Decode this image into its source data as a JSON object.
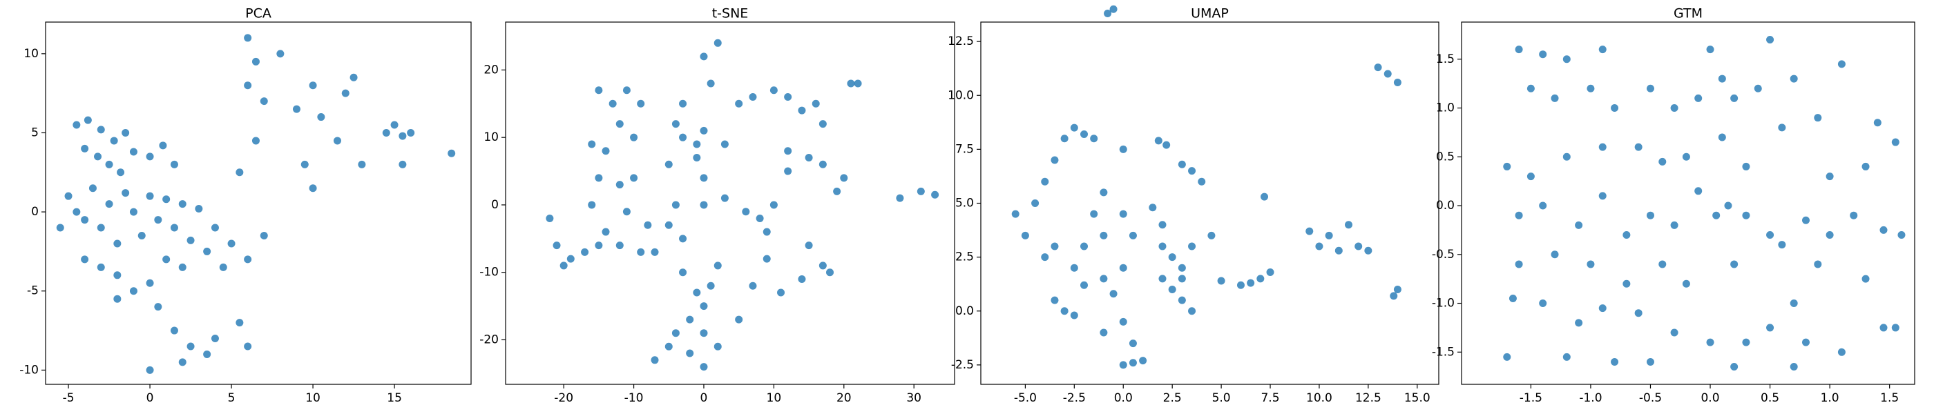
{
  "chart_data": [
    {
      "type": "scatter",
      "title": "PCA",
      "color": "#1f77b4",
      "xlim": [
        -6.4,
        19.7
      ],
      "ylim": [
        -10.9,
        12.0
      ],
      "xticks": [
        -5,
        0,
        5,
        10,
        15
      ],
      "yticks": [
        -10,
        -5,
        0,
        5,
        10
      ],
      "x": [
        -4.5,
        -3.8,
        -3,
        -2.2,
        -1.5,
        -4,
        -3.2,
        -2.5,
        -1.8,
        -1,
        0,
        0.8,
        1.5,
        -5,
        -4.5,
        -5.5,
        -4,
        -3.5,
        -3,
        -2.5,
        -2,
        -1.5,
        -1,
        -0.5,
        0,
        0.5,
        1,
        1.5,
        2,
        2.5,
        3,
        3.5,
        4,
        4.5,
        5,
        6,
        7,
        -4,
        -3,
        -2,
        -1,
        0,
        1,
        2,
        -2,
        0.5,
        1.5,
        2,
        3.5,
        4,
        0,
        2.5,
        5.5,
        6,
        6,
        6.5,
        6,
        8,
        7,
        9,
        10,
        10.5,
        11.5,
        12,
        12.5,
        13,
        14.5,
        15,
        15.5,
        16,
        15.5,
        18.5,
        10,
        9.5,
        6.5,
        5.5
      ],
      "values": [
        5.5,
        5.8,
        5.2,
        4.5,
        5,
        4,
        3.5,
        3,
        2.5,
        3.8,
        3.5,
        4.2,
        3,
        1,
        0,
        -1,
        -0.5,
        1.5,
        -1,
        0.5,
        -2,
        1.2,
        0,
        -1.5,
        1,
        -0.5,
        0.8,
        -1,
        0.5,
        -1.8,
        0.2,
        -2.5,
        -1,
        -3.5,
        -2,
        -3,
        -1.5,
        -3,
        -3.5,
        -4,
        -5,
        -4.5,
        -3,
        -3.5,
        -5.5,
        -6,
        -7.5,
        -9.5,
        -9,
        -8,
        -10,
        -8.5,
        -7,
        -8.5,
        8,
        9.5,
        11,
        10,
        7,
        6.5,
        8,
        6,
        4.5,
        7.5,
        8.5,
        3,
        5,
        5.5,
        4.8,
        5,
        3,
        3.7,
        1.5,
        3,
        4.5,
        2.5
      ]
    },
    {
      "type": "scatter",
      "title": "t-SNE",
      "color": "#1f77b4",
      "xlim": [
        -28.3,
        35.8
      ],
      "ylim": [
        -26.6,
        27.1
      ],
      "xticks": [
        -20,
        -10,
        0,
        10,
        20,
        30
      ],
      "yticks": [
        -20,
        -10,
        0,
        10,
        20
      ],
      "x": [
        -22,
        -21,
        -19,
        -17,
        -15,
        -14,
        -20,
        -15,
        -13,
        -11,
        -9,
        -12,
        -10,
        -16,
        -14,
        -15,
        -12,
        -10,
        -16,
        -11,
        -8,
        -12,
        -9,
        -7,
        -4,
        -5,
        -3,
        -5,
        -3,
        -1,
        0,
        -1,
        -4,
        0,
        0,
        -3,
        0,
        2,
        1,
        5,
        3,
        3,
        6,
        8,
        10,
        9,
        12,
        12,
        7,
        10,
        12,
        14,
        16,
        17,
        15,
        17,
        19,
        20,
        22,
        21,
        -3,
        -1,
        0,
        1,
        2,
        -2,
        0,
        -4,
        -7,
        -5,
        -2,
        0,
        2,
        5,
        7,
        9,
        11,
        14,
        15,
        17,
        18,
        28,
        31,
        33
      ],
      "values": [
        -2,
        -6,
        -8,
        -7,
        -6,
        -4,
        -9,
        17,
        15,
        17,
        15,
        12,
        10,
        9,
        8,
        4,
        3,
        4,
        0,
        -1,
        -3,
        -6,
        -7,
        -7,
        0,
        -3,
        -5,
        6,
        10,
        9,
        11,
        7,
        12,
        4,
        0,
        15,
        22,
        24,
        18,
        15,
        9,
        1,
        -1,
        -2,
        0,
        -4,
        5,
        8,
        16,
        17,
        16,
        14,
        15,
        12,
        7,
        6,
        2,
        4,
        18,
        18,
        -10,
        -13,
        -15,
        -12,
        -9,
        -17,
        -19,
        -19,
        -23,
        -21,
        -22,
        -24,
        -21,
        -17,
        -12,
        -8,
        -13,
        -11,
        -6,
        -9,
        -10,
        1,
        2,
        1.5
      ]
    },
    {
      "type": "scatter",
      "title": "UMAP",
      "color": "#1f77b4",
      "xlim": [
        -7.27,
        16.1
      ],
      "ylim": [
        -3.4,
        13.4
      ],
      "xticks": [
        {
          "value": -5,
          "label": "-5.0"
        },
        -2.5,
        {
          "value": 0,
          "label": "0.0"
        },
        2.5,
        {
          "value": 5,
          "label": "5.0"
        },
        7.5,
        {
          "value": 10,
          "label": "10.0"
        },
        12.5,
        {
          "value": 15,
          "label": "15.0"
        }
      ],
      "yticks": [
        -2.5,
        {
          "value": 0,
          "label": "0.0"
        },
        2.5,
        {
          "value": 5,
          "label": "5.0"
        },
        7.5,
        {
          "value": 10,
          "label": "10.0"
        },
        12.5
      ],
      "x": [
        -5.5,
        -5,
        -4.5,
        -4,
        -3.5,
        -3,
        -2.5,
        -2,
        -1.5,
        -4,
        -3.5,
        -2.5,
        -2,
        -1.5,
        -1,
        -1,
        -3.5,
        -3,
        -2.5,
        -2,
        -1,
        0,
        -0.5,
        0,
        0.5,
        0,
        0.5,
        1,
        -1,
        -0.8,
        -0.5,
        0,
        0,
        0.5,
        1.5,
        2,
        2,
        2.5,
        3,
        2.5,
        3,
        3.5,
        3.5,
        2,
        1.8,
        2.2,
        3,
        3.5,
        4,
        4.5,
        3,
        5,
        6,
        6.5,
        7,
        7.5,
        7.2,
        9.5,
        10,
        10.5,
        11,
        11.5,
        12,
        12.5,
        13,
        13.5,
        14,
        14,
        13.8
      ],
      "values": [
        4.5,
        3.5,
        5,
        6,
        7,
        8,
        8.5,
        8.2,
        8,
        2.5,
        3,
        2,
        3,
        4.5,
        5.5,
        3.5,
        0.5,
        0,
        -0.2,
        1.2,
        1.5,
        2,
        0.8,
        -0.5,
        -1.5,
        -2.5,
        -2.4,
        -2.3,
        -1,
        13.8,
        14,
        7.5,
        4.5,
        3.5,
        4.8,
        4,
        3,
        2.5,
        2,
        1,
        1.5,
        0,
        3,
        1.5,
        7.9,
        7.7,
        6.8,
        6.5,
        6,
        3.5,
        0.5,
        1.4,
        1.2,
        1.3,
        1.5,
        1.8,
        5.3,
        3.7,
        3,
        3.5,
        2.8,
        4,
        3,
        2.8,
        11.3,
        11,
        10.6,
        1,
        0.7
      ]
    },
    {
      "type": "scatter",
      "title": "GTM",
      "color": "#1f77b4",
      "xlim": [
        -2.08,
        1.71
      ],
      "ylim": [
        -1.83,
        1.88
      ],
      "xticks": [
        -1.5,
        {
          "value": -1,
          "label": "-1.0"
        },
        -0.5,
        {
          "value": 0,
          "label": "0.0"
        },
        0.5,
        {
          "value": 1,
          "label": "1.0"
        },
        1.5
      ],
      "yticks": [
        -1.5,
        {
          "value": -1,
          "label": "-1.0"
        },
        -0.5,
        {
          "value": 0,
          "label": "0.0"
        },
        0.5,
        {
          "value": 1,
          "label": "1.0"
        },
        1.5
      ],
      "x": [
        -1.6,
        -1.4,
        -1.2,
        -1.5,
        -1.3,
        -0.9,
        -1,
        -0.8,
        -0.5,
        -0.3,
        -0.1,
        0,
        0.1,
        0.2,
        0.5,
        0.4,
        0.7,
        1.1,
        1.4,
        1.55,
        -1.7,
        -1.5,
        -1.2,
        -0.9,
        -0.6,
        -0.4,
        -0.2,
        0.1,
        0.3,
        0.6,
        0.9,
        1,
        1.3,
        -1.6,
        -1.4,
        -1.1,
        -0.9,
        -0.7,
        -0.5,
        -0.3,
        -0.1,
        0.05,
        0.15,
        0.3,
        0.5,
        0.8,
        1,
        1.2,
        1.45,
        1.6,
        -1.6,
        -1.3,
        -1,
        -0.7,
        -0.4,
        -0.2,
        0.2,
        0.6,
        0.9,
        1.3,
        -1.65,
        -1.4,
        -1.1,
        -0.9,
        -0.6,
        -0.3,
        0,
        0.3,
        0.5,
        0.7,
        -1.7,
        -1.2,
        -0.8,
        -0.5,
        0.2,
        0.7,
        0.8,
        1.1,
        1.45,
        1.55
      ],
      "values": [
        1.6,
        1.55,
        1.5,
        1.2,
        1.1,
        1.6,
        1.2,
        1,
        1.2,
        1,
        1.1,
        1.6,
        1.3,
        1.1,
        1.7,
        1.2,
        1.3,
        1.45,
        0.85,
        0.65,
        0.4,
        0.3,
        0.5,
        0.6,
        0.6,
        0.45,
        0.5,
        0.7,
        0.4,
        0.8,
        0.9,
        0.3,
        0.4,
        -0.1,
        0,
        -0.2,
        0.1,
        -0.3,
        -0.1,
        -0.2,
        0.15,
        -0.1,
        0,
        -0.1,
        -0.3,
        -0.15,
        -0.3,
        -0.1,
        -0.25,
        -0.3,
        -0.6,
        -0.5,
        -0.6,
        -0.8,
        -0.6,
        -0.8,
        -0.6,
        -0.4,
        -0.6,
        -0.75,
        -0.95,
        -1.0,
        -1.2,
        -1.05,
        -1.1,
        -1.3,
        -1.4,
        -1.4,
        -1.25,
        -1.0,
        -1.55,
        -1.55,
        -1.6,
        -1.6,
        -1.65,
        -1.65,
        -1.4,
        -1.5,
        -1.25,
        -1.25
      ]
    }
  ]
}
